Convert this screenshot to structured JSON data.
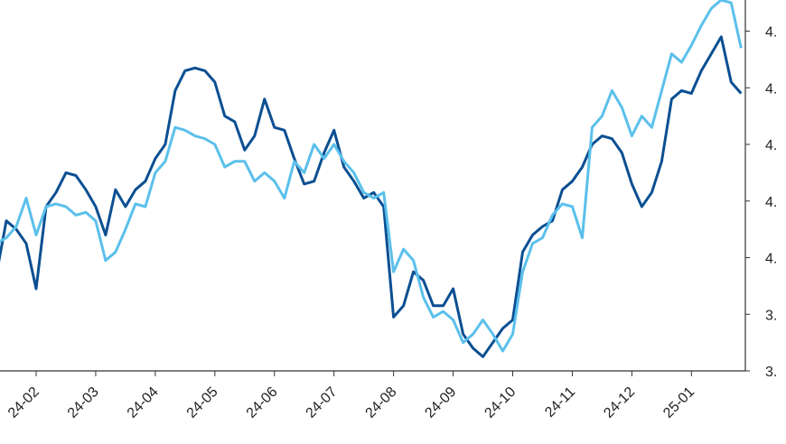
{
  "chart_data": {
    "type": "line",
    "categories": [
      null,
      null,
      null,
      null,
      "24-02",
      null,
      null,
      null,
      null,
      null,
      "24-03",
      null,
      null,
      null,
      null,
      null,
      "24-04",
      null,
      null,
      null,
      null,
      null,
      "24-05",
      null,
      null,
      null,
      null,
      null,
      "24-06",
      null,
      null,
      null,
      null,
      null,
      "24-07",
      null,
      null,
      null,
      null,
      null,
      "24-08",
      null,
      null,
      null,
      null,
      null,
      "24-09",
      null,
      null,
      null,
      null,
      null,
      "24-10",
      null,
      null,
      null,
      null,
      null,
      "24-11",
      null,
      null,
      null,
      null,
      null,
      "24-12",
      null,
      null,
      null,
      null,
      null,
      "25-01",
      null,
      null,
      null,
      null,
      null
    ],
    "series": [
      {
        "color": "#0b4f92",
        "values": [
          3.94,
          4.13,
          4.1,
          4.05,
          3.89,
          4.18,
          4.23,
          4.3,
          4.29,
          4.24,
          4.18,
          4.08,
          4.24,
          4.18,
          4.24,
          4.27,
          4.35,
          4.4,
          4.59,
          4.66,
          4.67,
          4.66,
          4.62,
          4.5,
          4.48,
          4.38,
          4.43,
          4.56,
          4.46,
          4.45,
          4.35,
          4.26,
          4.27,
          4.37,
          4.45,
          4.32,
          4.27,
          4.21,
          4.23,
          4.18,
          3.79,
          3.83,
          3.95,
          3.92,
          3.83,
          3.83,
          3.89,
          3.73,
          3.68,
          3.65,
          3.7,
          3.75,
          3.78,
          4.02,
          4.08,
          4.11,
          4.13,
          4.24,
          4.27,
          4.32,
          4.4,
          4.43,
          4.42,
          4.37,
          4.26,
          4.18,
          4.23,
          4.34,
          4.56,
          4.59,
          4.58,
          4.66,
          4.72,
          4.78,
          4.62,
          4.58
        ]
      },
      {
        "color": "#5bc0eb",
        "values": [
          4.05,
          4.07,
          4.11,
          4.21,
          4.08,
          4.18,
          4.19,
          4.18,
          4.15,
          4.16,
          4.13,
          3.99,
          4.02,
          4.1,
          4.19,
          4.18,
          4.3,
          4.34,
          4.46,
          4.45,
          4.43,
          4.42,
          4.4,
          4.32,
          4.34,
          4.34,
          4.27,
          4.3,
          4.27,
          4.21,
          4.34,
          4.3,
          4.4,
          4.35,
          4.4,
          4.34,
          4.3,
          4.23,
          4.21,
          4.23,
          3.95,
          4.03,
          3.99,
          3.86,
          3.79,
          3.81,
          3.78,
          3.7,
          3.73,
          3.78,
          3.73,
          3.67,
          3.73,
          3.95,
          4.05,
          4.07,
          4.15,
          4.19,
          4.18,
          4.07,
          4.46,
          4.5,
          4.59,
          4.53,
          4.43,
          4.5,
          4.46,
          4.59,
          4.72,
          4.69,
          4.75,
          4.82,
          4.88,
          4.91,
          4.9,
          4.74
        ]
      }
    ],
    "ylim": [
      3.6,
      4.91
    ],
    "yticks": [
      {
        "value": 3.6,
        "label": "3."
      },
      {
        "value": 3.8,
        "label": "3."
      },
      {
        "value": 4.0,
        "label": "4."
      },
      {
        "value": 4.2,
        "label": "4."
      },
      {
        "value": 4.4,
        "label": "4."
      },
      {
        "value": 4.6,
        "label": "4."
      },
      {
        "value": 4.8,
        "label": "4."
      }
    ]
  }
}
